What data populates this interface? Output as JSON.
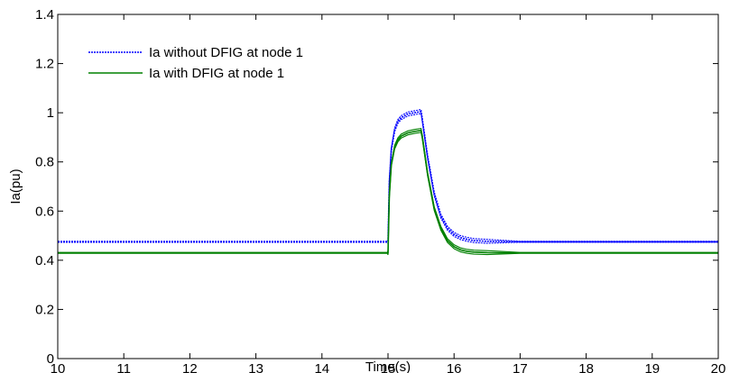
{
  "chart_data": {
    "type": "line",
    "title": "",
    "xlabel": "Time(s)",
    "ylabel": "Ia(pu)",
    "xlim": [
      10,
      20
    ],
    "ylim": [
      0,
      1.4
    ],
    "xticks": [
      "10",
      "11",
      "12",
      "13",
      "14",
      "15",
      "16",
      "17",
      "18",
      "19",
      "20"
    ],
    "yticks": [
      "0",
      "0.2",
      "0.4",
      "0.6",
      "0.8",
      "1",
      "1.2",
      "1.4"
    ],
    "grid": false,
    "legend_position": "top-left",
    "series": [
      {
        "name": "Ia without DFIG at node 1",
        "color": "#0000ff",
        "line_style": "dotted",
        "band": 0.008,
        "x": [
          10,
          14.99,
          15.0,
          15.02,
          15.05,
          15.1,
          15.15,
          15.2,
          15.3,
          15.4,
          15.5,
          15.52,
          15.6,
          15.7,
          15.8,
          15.9,
          16.0,
          16.1,
          16.2,
          16.3,
          16.5,
          17.0,
          20.0
        ],
        "y": [
          0.475,
          0.475,
          0.475,
          0.72,
          0.85,
          0.93,
          0.965,
          0.98,
          0.995,
          1.0,
          1.005,
          0.97,
          0.82,
          0.67,
          0.58,
          0.53,
          0.505,
          0.492,
          0.485,
          0.48,
          0.477,
          0.475,
          0.475
        ]
      },
      {
        "name": "Ia with DFIG at node 1",
        "color": "#008000",
        "line_style": "solid",
        "band": 0.008,
        "x": [
          10,
          14.99,
          15.0,
          15.02,
          15.05,
          15.1,
          15.15,
          15.2,
          15.3,
          15.4,
          15.5,
          15.52,
          15.6,
          15.7,
          15.8,
          15.9,
          16.0,
          16.1,
          16.2,
          16.3,
          16.5,
          17.0,
          20.0
        ],
        "y": [
          0.43,
          0.43,
          0.43,
          0.66,
          0.79,
          0.86,
          0.89,
          0.905,
          0.918,
          0.924,
          0.928,
          0.9,
          0.75,
          0.61,
          0.53,
          0.48,
          0.455,
          0.442,
          0.436,
          0.433,
          0.431,
          0.43,
          0.43
        ]
      }
    ]
  }
}
